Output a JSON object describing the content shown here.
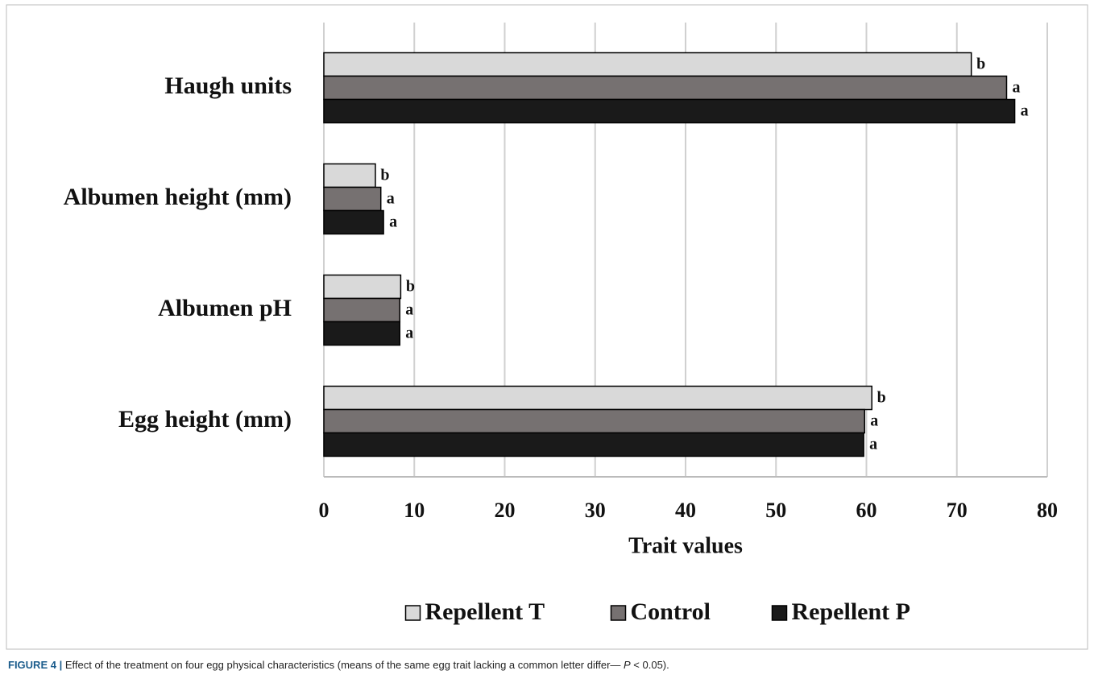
{
  "chart_data": {
    "type": "hbar",
    "xlabel": "Trait values",
    "categories": [
      "Haugh units",
      "Albumen height (mm)",
      "Albumen pH",
      "Egg height (mm)"
    ],
    "series": [
      {
        "name": "Repellent T",
        "color": "#d9d9d9",
        "values": [
          71.6,
          5.7,
          8.5,
          60.6
        ],
        "letters": [
          "b",
          "b",
          "b",
          "b"
        ]
      },
      {
        "name": "Control",
        "color": "#767171",
        "values": [
          75.5,
          6.3,
          8.4,
          59.8
        ],
        "letters": [
          "a",
          "a",
          "a",
          "a"
        ]
      },
      {
        "name": "Repellent P",
        "color": "#1a1a1a",
        "values": [
          76.4,
          6.6,
          8.4,
          59.7
        ],
        "letters": [
          "a",
          "a",
          "a",
          "a"
        ]
      }
    ],
    "xlim": [
      0,
      80
    ],
    "xticks": [
      0,
      10,
      20,
      30,
      40,
      50,
      60,
      70,
      80
    ],
    "grid": true,
    "legend": "bottom"
  },
  "caption": {
    "label": "FIGURE 4 |",
    "text": "Effect of the treatment on four egg physical characteristics (means of the same egg trait lacking a common letter differ— ",
    "italic": "P",
    "tail": " < 0.05)."
  }
}
